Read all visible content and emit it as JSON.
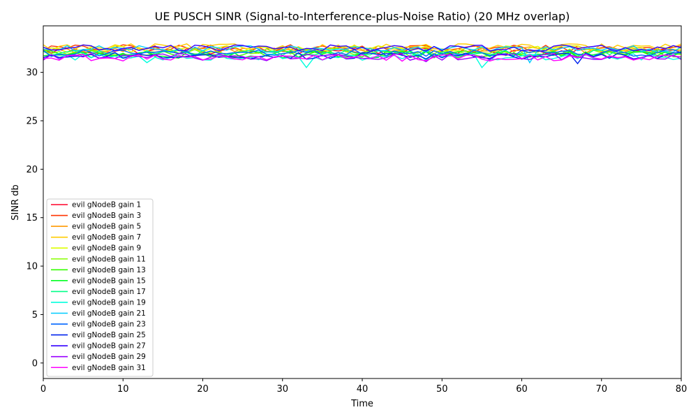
{
  "chart_data": {
    "type": "line",
    "title": "UE PUSCH SINR (Signal-to-Interference-plus-Noise Ratio) (20 MHz overlap)",
    "xlabel": "Time",
    "ylabel": "SINR db",
    "xlim": [
      0,
      80
    ],
    "ylim": [
      -1.6,
      34.8
    ],
    "xticks": [
      0,
      10,
      20,
      30,
      40,
      50,
      60,
      70,
      80
    ],
    "yticks": [
      0,
      5,
      10,
      15,
      20,
      25,
      30
    ],
    "grid": false,
    "legend_position": "lower-left",
    "series": [
      {
        "name": "evil gNodeB gain 1",
        "color": "#ff0029",
        "base": 32.2,
        "dips": []
      },
      {
        "name": "evil gNodeB gain 3",
        "color": "#ff3300",
        "base": 32.5,
        "dips": []
      },
      {
        "name": "evil gNodeB gain 5",
        "color": "#ff9900",
        "base": 32.3,
        "dips": []
      },
      {
        "name": "evil gNodeB gain 7",
        "color": "#ffcc00",
        "base": 32.6,
        "dips": []
      },
      {
        "name": "evil gNodeB gain 9",
        "color": "#ddff00",
        "base": 32.4,
        "dips": []
      },
      {
        "name": "evil gNodeB gain 11",
        "color": "#88ff00",
        "base": 32.1,
        "dips": []
      },
      {
        "name": "evil gNodeB gain 13",
        "color": "#33ff00",
        "base": 31.9,
        "dips": []
      },
      {
        "name": "evil gNodeB gain 15",
        "color": "#00ff22",
        "base": 31.8,
        "dips": []
      },
      {
        "name": "evil gNodeB gain 17",
        "color": "#00ff88",
        "base": 32.0,
        "dips": []
      },
      {
        "name": "evil gNodeB gain 19",
        "color": "#00ffdd",
        "base": 31.6,
        "dips": [
          [
            13,
            31.0
          ],
          [
            33,
            30.5
          ],
          [
            55,
            30.5
          ]
        ]
      },
      {
        "name": "evil gNodeB gain 21",
        "color": "#00ccff",
        "base": 32.4,
        "dips": [
          [
            61,
            31.0
          ]
        ]
      },
      {
        "name": "evil gNodeB gain 23",
        "color": "#0066ff",
        "base": 32.0,
        "dips": []
      },
      {
        "name": "evil gNodeB gain 25",
        "color": "#0022ee",
        "base": 31.7,
        "dips": [
          [
            67,
            30.9
          ]
        ]
      },
      {
        "name": "evil gNodeB gain 27",
        "color": "#3300ff",
        "base": 32.5,
        "dips": []
      },
      {
        "name": "evil gNodeB gain 29",
        "color": "#9900ff",
        "base": 31.6,
        "dips": [
          [
            28,
            31.2
          ],
          [
            48,
            31.1
          ]
        ]
      },
      {
        "name": "evil gNodeB gain 31",
        "color": "#ff00ff",
        "base": 31.5,
        "dips": []
      }
    ]
  }
}
